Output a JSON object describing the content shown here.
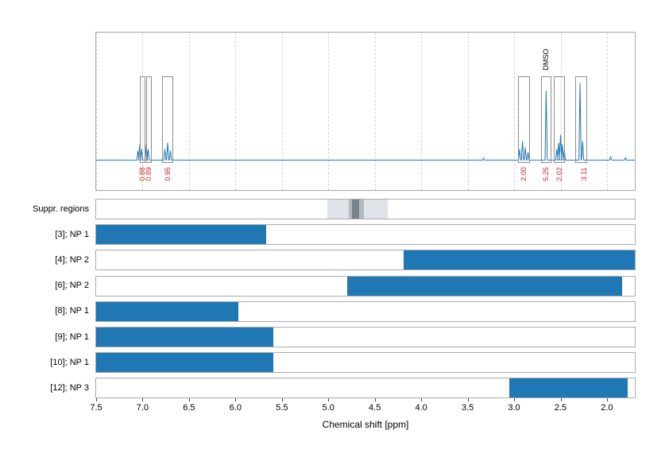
{
  "chart_data": [
    {
      "type": "line",
      "name": "1h-nmr-spectrum",
      "xlabel": "Chemical shift [ppm]",
      "x_range": [
        7.5,
        1.7
      ],
      "x_ticks": [
        "7.5",
        "7.0",
        "6.5",
        "6.0",
        "5.5",
        "5.0",
        "4.5",
        "4.0",
        "3.5",
        "3.0",
        "2.5",
        "2.0"
      ],
      "grid": "dashed-vertical",
      "line_color": "#1f77b4",
      "integral_label_color": "#cc2222",
      "solvent_annotation": {
        "text": "DMSO",
        "ppm": 2.66
      },
      "peaks": [
        {
          "ppm": 7.05,
          "height": 0.06
        },
        {
          "ppm": 7.03,
          "height": 0.1
        },
        {
          "ppm": 7.01,
          "height": 0.07
        },
        {
          "ppm": 6.96,
          "height": 0.1
        },
        {
          "ppm": 6.94,
          "height": 0.07
        },
        {
          "ppm": 6.76,
          "height": 0.07
        },
        {
          "ppm": 6.73,
          "height": 0.11
        },
        {
          "ppm": 6.7,
          "height": 0.06
        },
        {
          "ppm": 3.33,
          "height": 0.012
        },
        {
          "ppm": 2.94,
          "height": 0.07
        },
        {
          "ppm": 2.91,
          "height": 0.12
        },
        {
          "ppm": 2.88,
          "height": 0.08
        },
        {
          "ppm": 2.85,
          "height": 0.05
        },
        {
          "ppm": 2.655,
          "height": 0.44
        },
        {
          "ppm": 2.54,
          "height": 0.07
        },
        {
          "ppm": 2.52,
          "height": 0.11
        },
        {
          "ppm": 2.5,
          "height": 0.16
        },
        {
          "ppm": 2.48,
          "height": 0.1
        },
        {
          "ppm": 2.46,
          "height": 0.06
        },
        {
          "ppm": 2.29,
          "height": 0.49
        },
        {
          "ppm": 2.262,
          "height": 0.12
        },
        {
          "ppm": 1.96,
          "height": 0.02
        },
        {
          "ppm": 1.8,
          "height": 0.015
        }
      ],
      "integral_regions": [
        {
          "from": 7.03,
          "to": 6.97
        },
        {
          "from": 6.965,
          "to": 6.9
        },
        {
          "from": 6.79,
          "to": 6.67
        },
        {
          "from": 2.96,
          "to": 2.83
        },
        {
          "from": 2.71,
          "to": 2.6
        },
        {
          "from": 2.57,
          "to": 2.45
        },
        {
          "from": 2.34,
          "to": 2.21
        }
      ],
      "integrals": [
        {
          "label": "0.88",
          "ppm": 7.0
        },
        {
          "label": "0.89",
          "ppm": 6.935
        },
        {
          "label": "0.95",
          "ppm": 6.73
        },
        {
          "label": "2.00",
          "ppm": 2.895
        },
        {
          "label": "5.25",
          "ppm": 2.655
        },
        {
          "label": "2.02",
          "ppm": 2.51
        },
        {
          "label": "3.11",
          "ppm": 2.25
        }
      ]
    },
    {
      "type": "bar",
      "name": "ppm-range-rows",
      "orientation": "horizontal-range",
      "xlabel": "Chemical shift [ppm]",
      "x_range": [
        7.5,
        1.7
      ],
      "bar_color": "#1f77b4",
      "suppressed_row": {
        "label": "Suppr. regions",
        "regions": [
          {
            "from": 5.01,
            "to": 4.36,
            "color": "#dfe2e6"
          },
          {
            "from": 4.78,
            "to": 4.62,
            "color": "#b2b9c0"
          },
          {
            "from": 4.745,
            "to": 4.665,
            "color": "#79818b"
          }
        ]
      },
      "rows": [
        {
          "label": "[3]; NP 1",
          "from": 7.5,
          "to": 5.67
        },
        {
          "label": "[4]; NP 2",
          "from": 4.19,
          "to": 1.7
        },
        {
          "label": "[6]; NP 2",
          "from": 4.8,
          "to": 1.84
        },
        {
          "label": "[8]; NP 1",
          "from": 7.5,
          "to": 5.97
        },
        {
          "label": "[9]; NP 1",
          "from": 7.5,
          "to": 5.59
        },
        {
          "label": "[10]; NP 1",
          "from": 7.5,
          "to": 5.59
        },
        {
          "label": "[12]; NP 3",
          "from": 3.05,
          "to": 1.78
        }
      ]
    }
  ]
}
